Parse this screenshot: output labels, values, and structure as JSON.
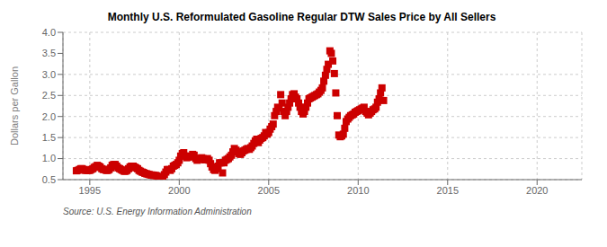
{
  "chart_data": {
    "type": "scatter",
    "title": "Monthly U.S. Reformulated Gasoline Regular DTW Sales Price by All Sellers",
    "ylabel": "Dollars per Gallon",
    "annotations": [
      "Source: U.S. Energy Information Administration"
    ],
    "color": "#cc0000",
    "marker": "square",
    "grid": true,
    "xlim": [
      1993.5,
      2022.5
    ],
    "xticks": [
      1995,
      2000,
      2005,
      2010,
      2015,
      2020
    ],
    "ylim": [
      0.5,
      4.0
    ],
    "yticks": [
      0.5,
      {
        "value": 1.0,
        "label": "1.0"
      },
      1.5,
      {
        "value": 2.0,
        "label": "2.0"
      },
      2.5,
      {
        "value": 3.0,
        "label": "3.0"
      },
      3.5,
      {
        "value": 4.0,
        "label": "4.0"
      }
    ],
    "x": [
      1994.25,
      1994.33,
      1994.42,
      1994.5,
      1994.58,
      1994.67,
      1994.75,
      1994.83,
      1994.92,
      1995.0,
      1995.08,
      1995.17,
      1995.25,
      1995.33,
      1995.42,
      1995.5,
      1995.58,
      1995.67,
      1995.75,
      1995.83,
      1995.92,
      1996.0,
      1996.08,
      1996.17,
      1996.25,
      1996.33,
      1996.42,
      1996.5,
      1996.58,
      1996.67,
      1996.75,
      1996.83,
      1996.92,
      1997.0,
      1997.08,
      1997.17,
      1997.25,
      1997.33,
      1997.42,
      1997.5,
      1997.58,
      1997.67,
      1997.75,
      1997.83,
      1997.92,
      1998.0,
      1998.08,
      1998.17,
      1998.25,
      1998.33,
      1998.42,
      1998.5,
      1998.58,
      1998.67,
      1998.75,
      1998.83,
      1998.92,
      1999.0,
      1999.08,
      1999.17,
      1999.25,
      1999.33,
      1999.42,
      1999.5,
      1999.58,
      1999.67,
      1999.75,
      1999.83,
      1999.92,
      2000.0,
      2000.08,
      2000.17,
      2000.25,
      2000.33,
      2000.42,
      2000.5,
      2000.58,
      2000.67,
      2000.75,
      2000.83,
      2000.92,
      2001.0,
      2001.08,
      2001.17,
      2001.25,
      2001.33,
      2001.42,
      2001.5,
      2001.58,
      2001.67,
      2001.75,
      2001.83,
      2001.92,
      2002.0,
      2002.08,
      2002.17,
      2002.25,
      2002.33,
      2002.42,
      2002.5,
      2002.58,
      2002.67,
      2002.75,
      2002.83,
      2002.92,
      2003.0,
      2003.08,
      2003.17,
      2003.25,
      2003.33,
      2003.42,
      2003.5,
      2003.58,
      2003.67,
      2003.75,
      2003.83,
      2003.92,
      2004.0,
      2004.08,
      2004.17,
      2004.25,
      2004.33,
      2004.42,
      2004.5,
      2004.58,
      2004.67,
      2004.75,
      2004.83,
      2004.92,
      2005.0,
      2005.08,
      2005.17,
      2005.25,
      2005.33,
      2005.42,
      2005.5,
      2005.58,
      2005.67,
      2005.75,
      2005.83,
      2005.92,
      2006.0,
      2006.08,
      2006.17,
      2006.25,
      2006.33,
      2006.42,
      2006.5,
      2006.58,
      2006.67,
      2006.75,
      2006.83,
      2006.92,
      2007.0,
      2007.08,
      2007.17,
      2007.25,
      2007.33,
      2007.42,
      2007.5,
      2007.58,
      2007.67,
      2007.75,
      2007.83,
      2007.92,
      2008.0,
      2008.08,
      2008.17,
      2008.25,
      2008.33,
      2008.42,
      2008.5,
      2008.58,
      2008.67,
      2008.75,
      2008.83,
      2008.92,
      2009.0,
      2009.08,
      2009.17,
      2009.25,
      2009.33,
      2009.42,
      2009.5,
      2009.58,
      2009.67,
      2009.75,
      2009.83,
      2009.92,
      2010.0,
      2010.08,
      2010.17,
      2010.25,
      2010.33,
      2010.42,
      2010.5,
      2010.58,
      2010.67,
      2010.75,
      2010.83,
      2010.92,
      2011.0,
      2011.08,
      2011.17,
      2011.25,
      2011.33,
      2011.42
    ],
    "values": [
      0.71,
      0.72,
      0.74,
      0.76,
      0.76,
      0.74,
      0.72,
      0.72,
      0.72,
      0.72,
      0.74,
      0.76,
      0.79,
      0.81,
      0.84,
      0.82,
      0.8,
      0.76,
      0.74,
      0.74,
      0.72,
      0.72,
      0.74,
      0.78,
      0.84,
      0.86,
      0.86,
      0.82,
      0.78,
      0.76,
      0.74,
      0.72,
      0.7,
      0.7,
      0.72,
      0.76,
      0.8,
      0.82,
      0.82,
      0.8,
      0.78,
      0.76,
      0.72,
      0.7,
      0.68,
      0.67,
      0.65,
      0.64,
      0.63,
      0.62,
      0.61,
      0.61,
      0.6,
      0.6,
      0.59,
      0.57,
      0.56,
      0.56,
      0.57,
      0.62,
      0.68,
      0.74,
      0.74,
      0.72,
      0.76,
      0.82,
      0.84,
      0.86,
      0.9,
      0.96,
      1.06,
      1.12,
      1.14,
      1.06,
      1.02,
      1.04,
      1.06,
      1.04,
      1.1,
      1.08,
      1.0,
      0.96,
      0.98,
      1.0,
      1.02,
      1.0,
      0.97,
      0.97,
      1.0,
      0.96,
      0.88,
      0.8,
      0.74,
      0.72,
      0.76,
      0.82,
      0.9,
      0.9,
      0.66,
      0.9,
      0.96,
      0.98,
      1.0,
      1.04,
      1.08,
      1.16,
      1.24,
      1.2,
      1.16,
      1.12,
      1.1,
      1.14,
      1.18,
      1.2,
      1.22,
      1.24,
      1.22,
      1.26,
      1.3,
      1.36,
      1.42,
      1.46,
      1.38,
      1.44,
      1.48,
      1.5,
      1.54,
      1.62,
      1.58,
      1.62,
      1.7,
      1.76,
      1.82,
      2.02,
      2.12,
      2.22,
      2.2,
      2.52,
      2.32,
      2.12,
      2.02,
      2.12,
      2.22,
      2.32,
      2.42,
      2.52,
      2.54,
      2.46,
      2.42,
      2.32,
      2.22,
      2.12,
      2.06,
      2.12,
      2.22,
      2.32,
      2.42,
      2.44,
      2.46,
      2.48,
      2.5,
      2.52,
      2.54,
      2.58,
      2.62,
      2.68,
      2.84,
      2.98,
      3.12,
      3.24,
      3.56,
      3.5,
      3.32,
      3.02,
      2.56,
      2.02,
      1.56,
      1.52,
      1.54,
      1.58,
      1.72,
      1.88,
      1.94,
      1.98,
      2.02,
      2.04,
      2.06,
      2.1,
      2.12,
      2.14,
      2.16,
      2.18,
      2.2,
      2.22,
      2.12,
      2.08,
      2.04,
      2.08,
      2.12,
      2.16,
      2.18,
      2.22,
      2.34,
      2.42,
      2.56,
      2.68,
      2.38
    ]
  }
}
